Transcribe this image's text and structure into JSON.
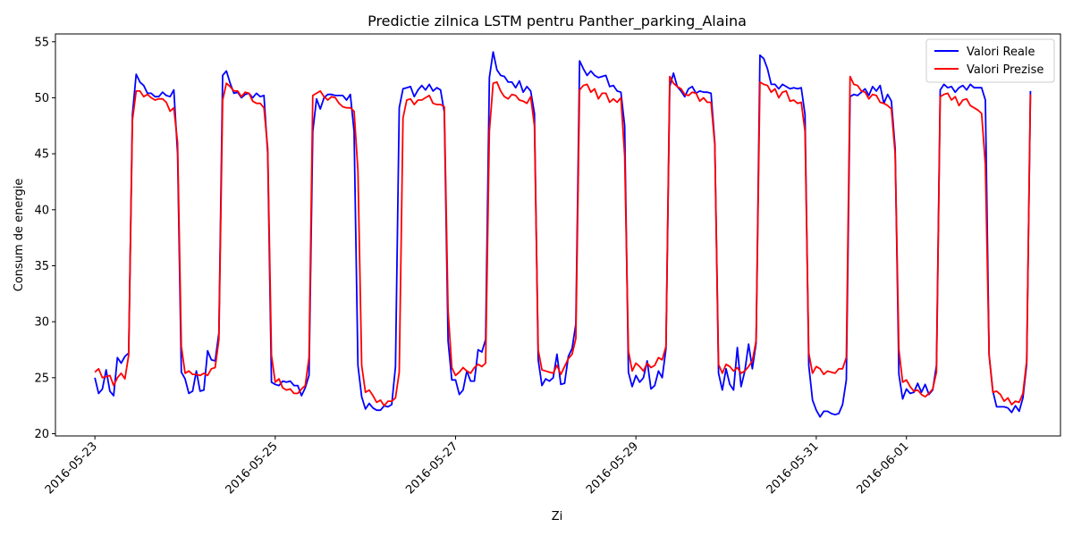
{
  "chart_data": {
    "type": "line",
    "title": "Predictie zilnica LSTM pentru Panther_parking_Alaina",
    "xlabel": "Zi",
    "ylabel": "Consum de energie",
    "xlim": [
      "2016-05-22 13:30",
      "2016-06-02 17:00"
    ],
    "ylim": [
      19.8,
      55.7
    ],
    "x_ticks": [
      "2016-05-23",
      "2016-05-25",
      "2016-05-27",
      "2016-05-29",
      "2016-05-31",
      "2016-06-01"
    ],
    "y_ticks": [
      20,
      25,
      30,
      35,
      40,
      45,
      50,
      55
    ],
    "grid": false,
    "legend_position": "top-right",
    "x_start": "2016-05-23 00:00",
    "x_step_hours": 1,
    "series": [
      {
        "name": "Valori Reale",
        "color": "#0000ff",
        "values": [
          25.0,
          23.6,
          24.0,
          25.7,
          23.8,
          23.4,
          26.8,
          26.3,
          26.9,
          27.2,
          48.5,
          52.1,
          51.4,
          51.1,
          50.4,
          50.4,
          50.1,
          50.1,
          50.5,
          50.2,
          50.1,
          50.7,
          45.0,
          25.5,
          24.9,
          23.6,
          23.8,
          25.6,
          23.8,
          23.9,
          27.4,
          26.6,
          26.5,
          29.0,
          52.0,
          52.4,
          51.3,
          50.4,
          50.5,
          50.0,
          50.3,
          50.4,
          50.0,
          50.4,
          50.1,
          50.2,
          45.0,
          24.6,
          24.4,
          24.3,
          24.7,
          24.6,
          24.7,
          24.3,
          24.3,
          23.4,
          24.1,
          25.2,
          47.0,
          49.9,
          49.0,
          50.0,
          50.3,
          50.3,
          50.2,
          50.2,
          50.2,
          49.8,
          50.3,
          47.0,
          26.1,
          23.3,
          22.2,
          22.7,
          22.3,
          22.1,
          22.1,
          22.5,
          22.4,
          22.6,
          26.0,
          49.1,
          50.8,
          50.9,
          51.0,
          50.1,
          50.7,
          51.1,
          50.7,
          51.2,
          50.6,
          50.9,
          50.7,
          48.7,
          28.3,
          24.8,
          24.8,
          23.5,
          23.9,
          25.6,
          24.7,
          24.7,
          27.5,
          27.3,
          28.4,
          51.8,
          54.1,
          52.5,
          52.0,
          51.9,
          51.4,
          51.4,
          50.9,
          51.5,
          50.5,
          51.0,
          50.6,
          48.6,
          26.6,
          24.3,
          24.9,
          24.7,
          25.0,
          27.1,
          24.4,
          24.5,
          26.9,
          27.6,
          29.8,
          53.3,
          52.6,
          52.0,
          52.4,
          52.0,
          51.8,
          51.9,
          52.0,
          51.0,
          51.1,
          50.6,
          50.5,
          47.5,
          25.5,
          24.2,
          25.2,
          24.6,
          25.0,
          26.5,
          24.0,
          24.3,
          25.6,
          25.0,
          27.6,
          51.0,
          52.2,
          51.0,
          50.6,
          50.1,
          50.8,
          51.0,
          50.4,
          50.6,
          50.5,
          50.5,
          50.4,
          46.0,
          25.4,
          23.9,
          25.8,
          24.4,
          23.9,
          27.7,
          24.2,
          25.6,
          28.0,
          25.8,
          28.1,
          53.8,
          53.5,
          52.6,
          51.2,
          51.2,
          50.8,
          51.2,
          51.0,
          50.8,
          50.9,
          50.8,
          50.9,
          48.5,
          26.1,
          23.0,
          22.1,
          21.5,
          22.0,
          22.0,
          21.8,
          21.7,
          21.8,
          22.6,
          24.8,
          50.1,
          50.3,
          50.2,
          50.5,
          50.8,
          50.2,
          51.0,
          50.6,
          51.1,
          49.5,
          50.3,
          49.7,
          45.5,
          25.3,
          23.1,
          24.0,
          23.6,
          23.7,
          24.5,
          23.7,
          24.4,
          23.5,
          23.9,
          26.1,
          50.7,
          51.2,
          50.9,
          51.0,
          50.5,
          50.9,
          51.1,
          50.7,
          51.2,
          50.9,
          50.9,
          50.9,
          49.8,
          27.0,
          23.8,
          22.4,
          22.4,
          22.4,
          22.3,
          21.9,
          22.5,
          22.0,
          23.2,
          26.2,
          50.6
        ]
      },
      {
        "name": "Valori Prezise",
        "color": "#ff0000",
        "values": [
          25.5,
          25.8,
          25.0,
          25.1,
          25.2,
          24.3,
          25.0,
          25.4,
          24.9,
          27.0,
          48.0,
          50.6,
          50.6,
          50.1,
          50.3,
          50.0,
          49.8,
          49.9,
          49.9,
          49.6,
          48.8,
          49.1,
          46.0,
          27.8,
          25.4,
          25.6,
          25.3,
          25.3,
          25.2,
          25.4,
          25.2,
          25.8,
          25.9,
          28.4,
          49.8,
          51.3,
          51.0,
          50.6,
          50.6,
          50.1,
          50.5,
          50.4,
          49.7,
          49.5,
          49.5,
          49.1,
          45.5,
          27.0,
          24.6,
          24.9,
          24.1,
          23.9,
          24.0,
          23.6,
          23.6,
          24.0,
          24.3,
          26.8,
          50.2,
          50.4,
          50.6,
          50.1,
          49.8,
          50.1,
          50.0,
          49.5,
          49.2,
          49.1,
          49.1,
          48.8,
          43.5,
          26.1,
          23.7,
          23.9,
          23.4,
          22.8,
          23.0,
          22.5,
          22.9,
          22.9,
          23.2,
          25.5,
          48.2,
          49.8,
          49.9,
          49.4,
          49.8,
          49.8,
          50.0,
          50.2,
          49.5,
          49.4,
          49.4,
          49.2,
          31.0,
          25.9,
          25.2,
          25.5,
          25.9,
          25.6,
          25.4,
          25.9,
          26.2,
          26.0,
          26.3,
          47.0,
          51.3,
          51.4,
          50.6,
          50.1,
          49.9,
          50.3,
          50.2,
          49.8,
          49.7,
          49.5,
          50.1,
          47.5,
          27.5,
          25.7,
          25.6,
          25.5,
          25.4,
          26.1,
          25.3,
          26.0,
          26.7,
          27.1,
          28.5,
          50.7,
          51.1,
          51.2,
          50.5,
          50.8,
          49.9,
          50.4,
          50.4,
          49.6,
          49.9,
          49.6,
          50.0,
          44.8,
          27.4,
          25.6,
          26.3,
          26.0,
          25.6,
          26.3,
          25.9,
          26.1,
          26.8,
          26.6,
          27.8,
          51.9,
          51.3,
          51.0,
          50.8,
          50.3,
          50.2,
          50.5,
          50.4,
          49.7,
          50.0,
          49.6,
          49.6,
          45.8,
          26.2,
          25.4,
          26.2,
          26.0,
          25.6,
          25.9,
          25.4,
          25.6,
          26.0,
          26.5,
          28.3,
          51.4,
          51.2,
          51.1,
          50.5,
          50.8,
          50.0,
          50.5,
          50.6,
          49.7,
          49.8,
          49.5,
          49.6,
          47.0,
          27.2,
          25.4,
          26.0,
          25.8,
          25.3,
          25.6,
          25.5,
          25.4,
          25.8,
          25.8,
          26.8,
          51.9,
          51.2,
          51.1,
          50.6,
          50.5,
          49.9,
          50.3,
          50.2,
          49.6,
          49.5,
          49.3,
          49.0,
          45.0,
          27.5,
          24.6,
          24.8,
          24.2,
          23.8,
          23.9,
          23.5,
          23.3,
          23.6,
          24.0,
          25.5,
          50.1,
          50.3,
          50.4,
          49.8,
          50.1,
          49.3,
          49.8,
          49.9,
          49.3,
          49.1,
          48.9,
          48.6,
          44.0,
          27.0,
          23.7,
          23.8,
          23.5,
          22.9,
          23.2,
          22.6,
          22.9,
          22.8,
          23.6,
          26.5,
          50.3
        ]
      }
    ]
  }
}
